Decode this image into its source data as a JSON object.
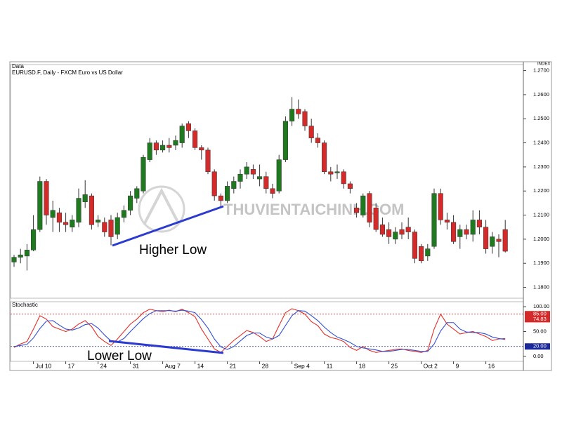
{
  "chart_data": [
    {
      "type": "candlestick",
      "panel_label": "Data",
      "title": "EURUSD.F, Daily - FXCM Euro vs US Dollar",
      "axis_label": "INDEX",
      "annotation": "Higher Low",
      "watermark": "THUVIENTAICHINH.COM",
      "up_color": "#1f7a1f",
      "down_color": "#d42a2a",
      "categories": [
        null,
        null,
        null,
        "Jul 10",
        null,
        null,
        null,
        null,
        "17",
        null,
        null,
        null,
        null,
        "24",
        null,
        null,
        null,
        null,
        "31",
        null,
        null,
        null,
        null,
        "Aug 7",
        null,
        null,
        null,
        null,
        "14",
        null,
        null,
        null,
        null,
        "21",
        null,
        null,
        null,
        null,
        "28",
        null,
        null,
        null,
        null,
        "Sep 4",
        null,
        null,
        null,
        null,
        "11",
        null,
        null,
        null,
        null,
        "18",
        null,
        null,
        null,
        null,
        "25",
        null,
        null,
        null,
        null,
        "Oct 2",
        null,
        null,
        null,
        null,
        "9",
        null,
        null,
        null,
        null,
        "16",
        null,
        null,
        null
      ],
      "open": [
        1.1905,
        1.1925,
        1.193,
        1.1955,
        1.204,
        1.224,
        1.209,
        1.211,
        1.207,
        1.205,
        1.207,
        1.2155,
        1.218,
        1.207,
        1.207,
        1.208,
        1.202,
        1.209,
        1.212,
        1.217,
        1.22,
        1.233,
        1.24,
        1.237,
        1.239,
        1.239,
        1.24,
        1.248,
        1.245,
        1.238,
        1.237,
        1.228,
        1.218,
        1.216,
        1.221,
        1.224,
        1.227,
        1.229,
        1.225,
        1.226,
        1.221,
        1.22,
        1.233,
        1.249,
        1.254,
        1.253,
        1.247,
        1.242,
        1.24,
        1.228,
        1.2275,
        1.228,
        1.223,
        1.213,
        1.21,
        1.219,
        1.213,
        1.206,
        1.204,
        1.2,
        1.204,
        1.205,
        1.203,
        1.197,
        1.193,
        1.197,
        1.219,
        1.208,
        1.207,
        1.201,
        1.204,
        1.202,
        1.208,
        1.205,
        1.197,
        1.2,
        1.204
      ],
      "high": [
        1.1935,
        1.196,
        1.198,
        1.21,
        1.226,
        1.225,
        1.216,
        1.213,
        1.211,
        1.21,
        1.221,
        1.2245,
        1.219,
        1.21,
        1.209,
        1.21,
        1.211,
        1.214,
        1.22,
        1.222,
        1.235,
        1.242,
        1.241,
        1.241,
        1.242,
        1.243,
        1.248,
        1.249,
        1.246,
        1.239,
        1.238,
        1.229,
        1.219,
        1.224,
        1.226,
        1.229,
        1.232,
        1.231,
        1.231,
        1.228,
        1.223,
        1.235,
        1.251,
        1.259,
        1.258,
        1.254,
        1.25,
        1.244,
        1.241,
        1.23,
        1.231,
        1.229,
        1.224,
        1.215,
        1.219,
        1.22,
        1.215,
        1.209,
        1.207,
        1.205,
        1.207,
        1.209,
        1.204,
        1.198,
        1.198,
        1.221,
        1.221,
        1.211,
        1.21,
        1.206,
        1.206,
        1.212,
        1.212,
        1.208,
        1.203,
        1.202,
        1.208
      ],
      "low": [
        1.1885,
        1.19,
        1.187,
        1.195,
        1.203,
        1.206,
        1.203,
        1.203,
        1.203,
        1.203,
        1.205,
        1.213,
        1.204,
        1.205,
        1.201,
        1.1975,
        1.2,
        1.207,
        1.21,
        1.215,
        1.219,
        1.232,
        1.235,
        1.236,
        1.236,
        1.237,
        1.238,
        1.242,
        1.237,
        1.233,
        1.227,
        1.216,
        1.2135,
        1.215,
        1.219,
        1.221,
        1.225,
        1.225,
        1.222,
        1.219,
        1.217,
        1.219,
        1.232,
        1.247,
        1.25,
        1.245,
        1.24,
        1.238,
        1.227,
        1.224,
        1.225,
        1.221,
        1.219,
        1.209,
        1.209,
        1.205,
        1.203,
        1.201,
        1.198,
        1.198,
        1.2,
        1.2,
        1.19,
        1.19,
        1.191,
        1.196,
        1.206,
        1.204,
        1.198,
        1.196,
        1.2,
        1.199,
        1.202,
        1.194,
        1.194,
        1.1925,
        1.1945
      ],
      "close": [
        1.1925,
        1.1935,
        1.1955,
        1.204,
        1.224,
        1.21,
        1.212,
        1.207,
        1.206,
        1.208,
        1.217,
        1.2185,
        1.206,
        1.208,
        1.203,
        1.201,
        1.209,
        1.212,
        1.218,
        1.221,
        1.234,
        1.24,
        1.237,
        1.239,
        1.238,
        1.241,
        1.247,
        1.245,
        1.238,
        1.237,
        1.228,
        1.218,
        1.216,
        1.222,
        1.224,
        1.227,
        1.23,
        1.227,
        1.226,
        1.221,
        1.219,
        1.233,
        1.249,
        1.254,
        1.252,
        1.247,
        1.242,
        1.24,
        1.228,
        1.227,
        1.228,
        1.223,
        1.221,
        1.211,
        1.218,
        1.207,
        1.204,
        1.202,
        1.201,
        1.203,
        1.202,
        1.203,
        1.192,
        1.191,
        1.196,
        1.219,
        1.208,
        1.207,
        1.199,
        1.204,
        1.202,
        1.208,
        1.205,
        1.196,
        1.201,
        1.199,
        1.195
      ],
      "ylim": [
        1.1755,
        1.2725
      ],
      "yticks": [
        {
          "value": 1.18,
          "label": "1.1800"
        },
        {
          "value": 1.19,
          "label": "1.1900"
        },
        {
          "value": 1.2,
          "label": "1.2000"
        },
        {
          "value": 1.21,
          "label": "1.2100"
        },
        {
          "value": 1.22,
          "label": "1.2200"
        },
        {
          "value": 1.23,
          "label": "1.2300"
        },
        {
          "value": 1.24,
          "label": "1.2400"
        },
        {
          "value": 1.25,
          "label": "1.2500"
        },
        {
          "value": 1.26,
          "label": "1.2600"
        },
        {
          "value": 1.27,
          "label": "1.2700"
        }
      ]
    },
    {
      "type": "line",
      "panel_label": "Stochastic",
      "annotation": "Lower Low",
      "series": [
        {
          "color": "#e0302a",
          "values": [
            18,
            25,
            30,
            55,
            82,
            75,
            60,
            55,
            50,
            55,
            65,
            72,
            60,
            40,
            30,
            22,
            35,
            50,
            65,
            75,
            88,
            95,
            92,
            90,
            93,
            90,
            95,
            88,
            80,
            55,
            35,
            15,
            8,
            20,
            32,
            42,
            52,
            48,
            40,
            30,
            35,
            62,
            88,
            96,
            92,
            85,
            70,
            62,
            45,
            38,
            35,
            30,
            18,
            12,
            20,
            12,
            8,
            10,
            12,
            14,
            15,
            12,
            10,
            8,
            12,
            55,
            85,
            65,
            55,
            45,
            48,
            50,
            45,
            40,
            32,
            35,
            36
          ]
        },
        {
          "color": "#3050d0",
          "values": [
            20,
            22,
            24,
            37,
            56,
            71,
            72,
            63,
            55,
            53,
            57,
            64,
            66,
            57,
            43,
            31,
            29,
            36,
            50,
            63,
            76,
            86,
            92,
            92,
            92,
            91,
            93,
            91,
            88,
            74,
            57,
            35,
            19,
            14,
            20,
            31,
            42,
            47,
            47,
            39,
            35,
            42,
            62,
            82,
            92,
            91,
            82,
            72,
            59,
            48,
            39,
            34,
            28,
            20,
            17,
            15,
            13,
            10,
            10,
            12,
            14,
            14,
            12,
            10,
            10,
            25,
            51,
            68,
            68,
            55,
            49,
            48,
            48,
            45,
            39,
            36,
            34
          ]
        }
      ],
      "levels": [
        {
          "value": 85,
          "label": "85.00",
          "color": "#d42a2a"
        },
        {
          "value": 20,
          "label": "20.00",
          "color": "#1a2a9a"
        }
      ],
      "readout": {
        "value": 74.83,
        "label": "74.83",
        "color": "#d42a2a"
      },
      "ylim": [
        -10,
        110
      ],
      "yticks": [
        {
          "value": 0,
          "label": "0.00"
        },
        {
          "value": 50,
          "label": "50.00"
        },
        {
          "value": 100,
          "label": "100.00"
        }
      ]
    }
  ]
}
